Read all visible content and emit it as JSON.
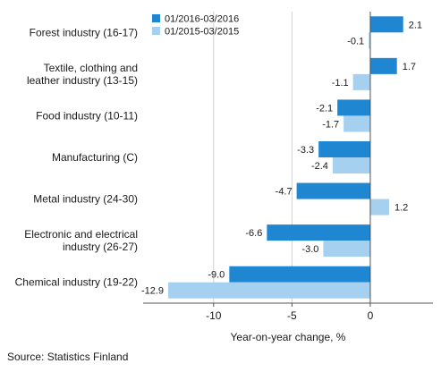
{
  "chart_data": {
    "type": "bar",
    "orientation": "horizontal",
    "categories": [
      "Forest industry (16-17)",
      "Textile, clothing and leather industry (13-15)",
      "Food industry (10-11)",
      "Manufacturing (C)",
      "Metal industry (24-30)",
      "Electronic and electrical industry (26-27)",
      "Chemical industry (19-22)"
    ],
    "category_lines": [
      [
        "Forest industry (16-17)"
      ],
      [
        "Textile, clothing and",
        "leather industry (13-15)"
      ],
      [
        "Food industry (10-11)"
      ],
      [
        "Manufacturing (C)"
      ],
      [
        "Metal industry (24-30)"
      ],
      [
        "Electronic and electrical",
        "industry (26-27)"
      ],
      [
        "Chemical industry (19-22)"
      ]
    ],
    "series": [
      {
        "name": "01/2016-03/2016",
        "color": "#1f86d1",
        "values": [
          2.1,
          1.7,
          -2.1,
          -3.3,
          -4.7,
          -6.6,
          -9.0
        ],
        "labels": [
          "2.1",
          "1.7",
          "-2.1",
          "-3.3",
          "-4.7",
          "-6.6",
          "-9.0"
        ]
      },
      {
        "name": "01/2015-03/2015",
        "color": "#a6d0f0",
        "values": [
          -0.1,
          -1.1,
          -1.7,
          -2.4,
          1.2,
          -3.0,
          -12.9
        ],
        "labels": [
          "-0.1",
          "-1.1",
          "-1.7",
          "-2.4",
          "1.2",
          "-3.0",
          "-12.9"
        ]
      }
    ],
    "xlim": [
      -14.5,
      4.0
    ],
    "xticks": [
      -10,
      -5,
      0
    ],
    "xtick_labels": [
      "-10",
      "-5",
      "0"
    ],
    "xlabel": "Year-on-year change, %",
    "grid": true,
    "legend": "top"
  },
  "source": "Source: Statistics Finland"
}
